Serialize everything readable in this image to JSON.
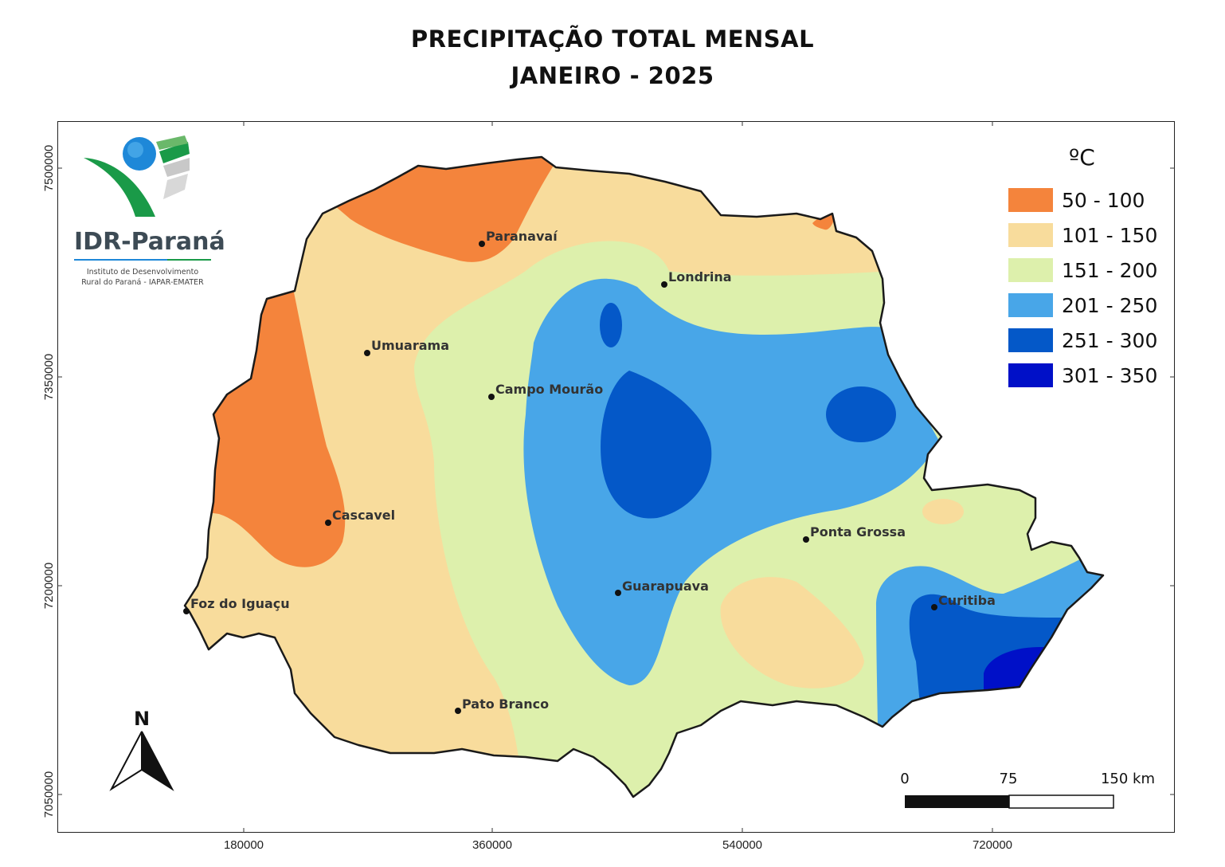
{
  "title": {
    "line1": "PRECIPITAÇÃO TOTAL MENSAL",
    "line2": "JANEIRO - 2025"
  },
  "logo": {
    "name": "IDR-Paraná",
    "subtitle_line1": "Instituto de Desenvolvimento",
    "subtitle_line2": "Rural do Paraná - IAPAR-EMATER"
  },
  "axes": {
    "x_ticks": [
      "180000",
      "360000",
      "540000",
      "720000"
    ],
    "y_ticks": [
      "7500000",
      "7350000",
      "7200000",
      "7050000"
    ]
  },
  "legend": {
    "title": "ºC",
    "items": [
      {
        "label": "50 - 100",
        "color": "#f4843c"
      },
      {
        "label": "101 - 150",
        "color": "#f8dc9c"
      },
      {
        "label": "151 - 200",
        "color": "#ddf0ac"
      },
      {
        "label": "201 - 250",
        "color": "#48a6e8"
      },
      {
        "label": "251 - 300",
        "color": "#0458c8"
      },
      {
        "label": "301 - 350",
        "color": "#0010c8"
      }
    ]
  },
  "cities": [
    {
      "name": "Paranavaí"
    },
    {
      "name": "Londrina"
    },
    {
      "name": "Umuarama"
    },
    {
      "name": "Campo Mourão"
    },
    {
      "name": "Cascavel"
    },
    {
      "name": "Ponta Grossa"
    },
    {
      "name": "Guarapuava"
    },
    {
      "name": "Curitiba"
    },
    {
      "name": "Foz do Iguaçu"
    },
    {
      "name": "Pato Branco"
    }
  ],
  "north_arrow": {
    "label": "N"
  },
  "scale_bar": {
    "labels": [
      "0",
      "75",
      "150 km"
    ]
  }
}
